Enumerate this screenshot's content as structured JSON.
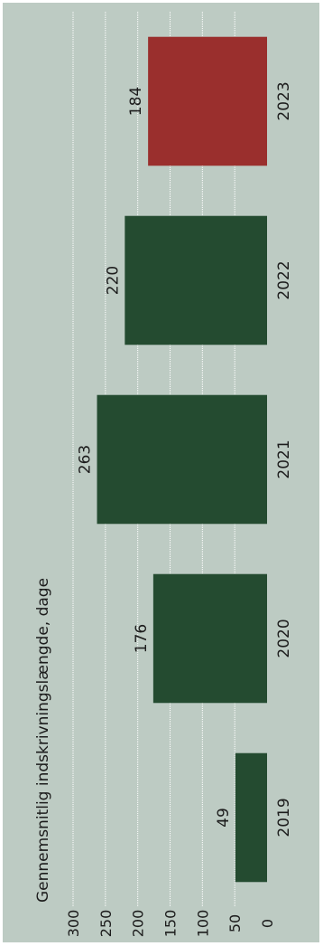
{
  "chart_data": {
    "type": "bar",
    "orientation": "rotated-90",
    "ylabel": "Gennemsnitlig indskrivningslængde, dage",
    "categories": [
      "2019",
      "2020",
      "2021",
      "2022",
      "2023"
    ],
    "values": [
      49,
      176,
      263,
      220,
      184
    ],
    "value_labels": [
      "49",
      "176",
      "263",
      "220",
      "184"
    ],
    "ylim": [
      0,
      300
    ],
    "yticks": [
      0,
      50,
      100,
      150,
      200,
      250,
      300
    ],
    "ytick_labels": [
      "0",
      "50",
      "100",
      "150",
      "200",
      "250",
      "300"
    ],
    "grid": true,
    "colors": {
      "background": "#bdcbc3",
      "bar": "#244b30",
      "highlight": "#9a2f2d",
      "gridline": "#ffffff"
    },
    "highlight_category": "2023"
  }
}
